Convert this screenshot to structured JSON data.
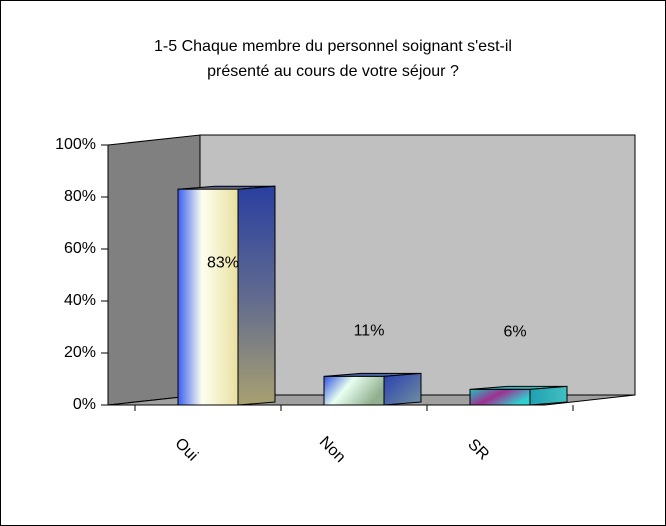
{
  "chart_data": {
    "type": "bar3d",
    "title": "1-5 Chaque membre du personnel soignant s'est-il présenté au cours de votre séjour ?",
    "categories": [
      "Oui",
      "Non",
      "SR"
    ],
    "values": [
      83,
      11,
      6
    ],
    "value_labels": [
      "83%",
      "11%",
      "6%"
    ],
    "ylim": [
      0,
      100
    ],
    "yticks": [
      {
        "value": 0,
        "label": "0%"
      },
      {
        "value": 20,
        "label": "20%"
      },
      {
        "value": 40,
        "label": "40%"
      },
      {
        "value": 60,
        "label": "60%"
      },
      {
        "value": 80,
        "label": "80%"
      },
      {
        "value": 100,
        "label": "100%"
      }
    ]
  }
}
